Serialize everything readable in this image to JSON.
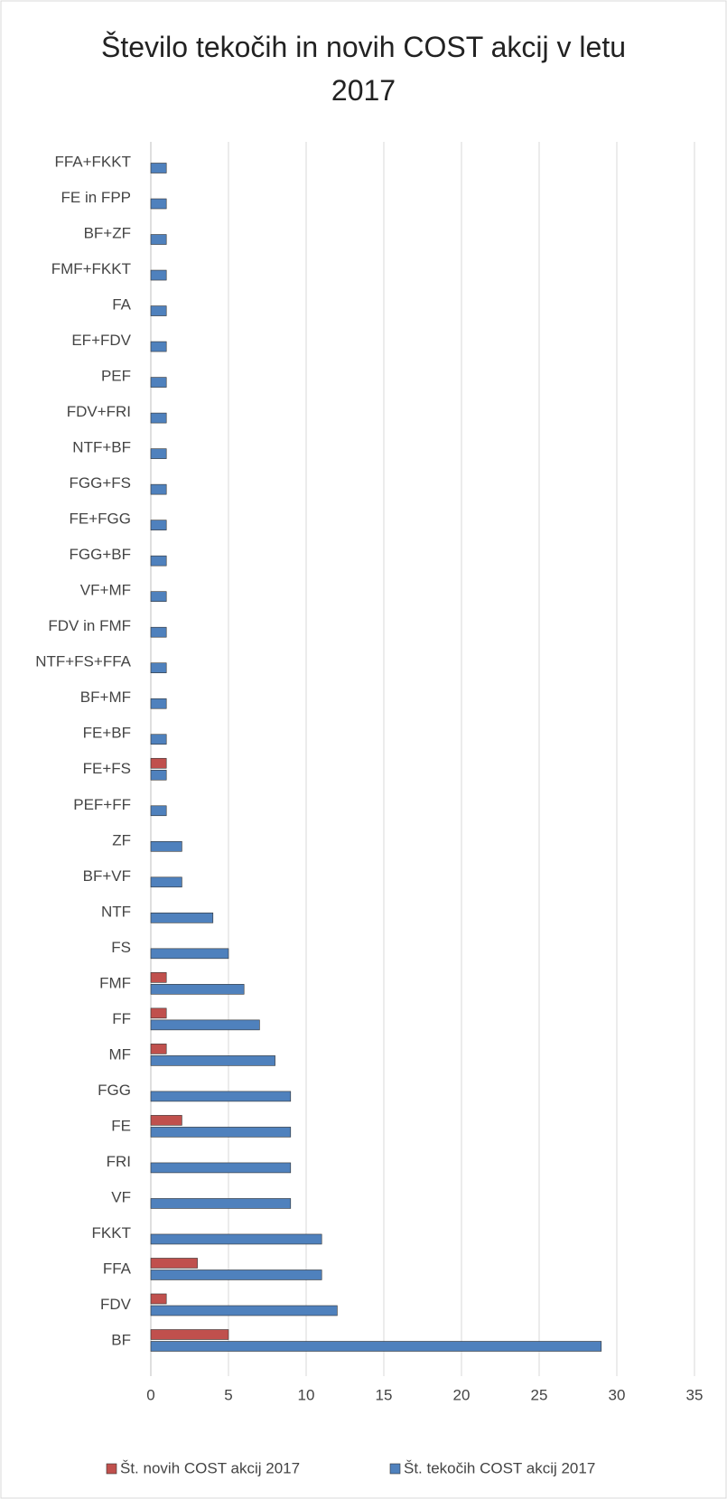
{
  "chart_data": {
    "type": "hbar",
    "title": "Število tekočih in novih COST akcij v letu 2017",
    "categories": [
      "BF",
      "FDV",
      "FFA",
      "FKKT",
      "VF",
      "FRI",
      "FE",
      "FGG",
      "MF",
      "FF",
      "FMF",
      "FS",
      "NTF",
      "BF+VF",
      "ZF",
      "PEF+FF",
      "FE+FS",
      "FE+BF",
      "BF+MF",
      "NTF+FS+FFA",
      "FDV in FMF",
      "VF+MF",
      "FGG+BF",
      "FE+FGG",
      "FGG+FS",
      "NTF+BF",
      "FDV+FRI",
      "PEF",
      "EF+FDV",
      "FA",
      "FMF+FKKT",
      "BF+ZF",
      "FE in FPP",
      "FFA+FKKT"
    ],
    "series": [
      {
        "name": "Št. novih COST akcij 2017",
        "color": "#c0504d",
        "values": [
          5,
          1,
          3,
          null,
          null,
          null,
          2,
          null,
          1,
          1,
          1,
          null,
          null,
          null,
          null,
          null,
          1,
          null,
          null,
          null,
          null,
          null,
          null,
          null,
          null,
          null,
          null,
          null,
          null,
          null,
          null,
          null,
          null,
          null
        ]
      },
      {
        "name": "Št. tekočih COST akcij 2017",
        "color": "#4f81bd",
        "values": [
          29,
          12,
          11,
          11,
          9,
          9,
          9,
          9,
          8,
          7,
          6,
          5,
          4,
          2,
          2,
          1,
          1,
          1,
          1,
          1,
          1,
          1,
          1,
          1,
          1,
          1,
          1,
          1,
          1,
          1,
          1,
          1,
          1,
          1
        ]
      }
    ],
    "xlim": [
      0,
      35
    ],
    "xticks": [
      0,
      5,
      10,
      15,
      20,
      25,
      30,
      35
    ],
    "grid": true,
    "legend": "bottom"
  }
}
